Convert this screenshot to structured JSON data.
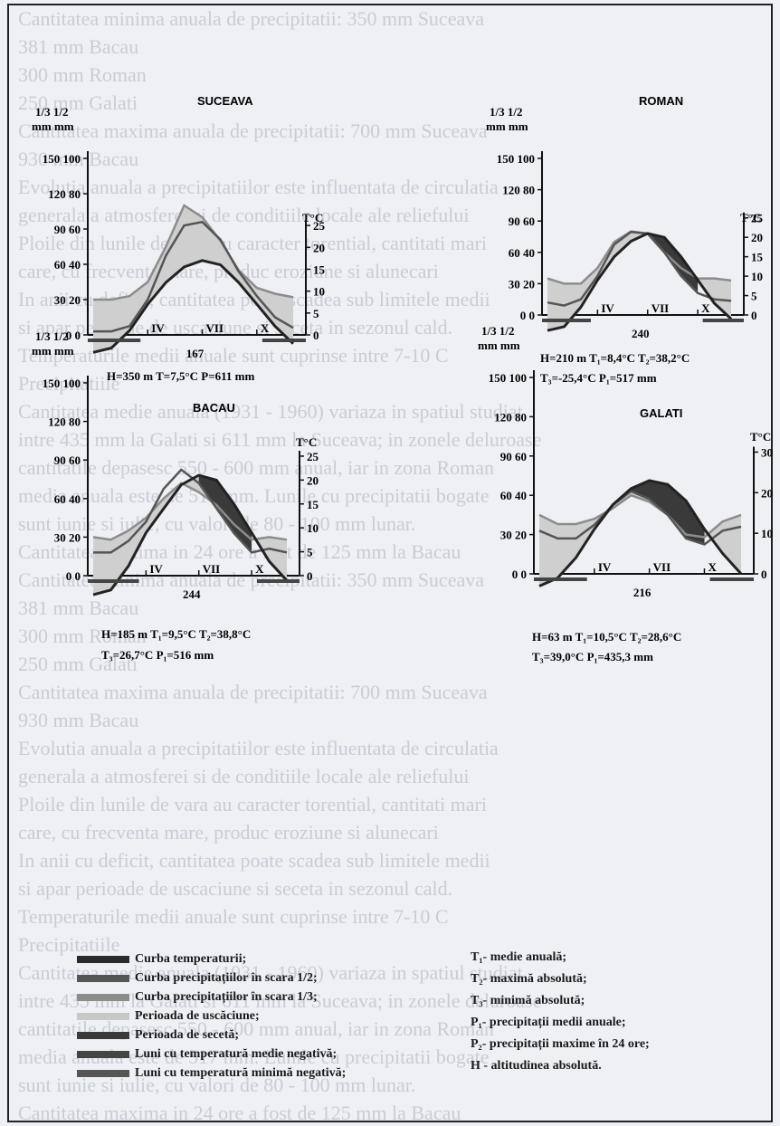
{
  "background_text": [
    "Cantitatea minima anuala de precipitatii:   350 mm Suceava",
    "              381 mm Bacau",
    "              300 mm Roman",
    "              250 mm Galati",
    "Cantitatea maxima anuala de precipitatii:   700 mm Suceava",
    "              930 mm Bacau",
    "Evolutia anuala a precipitatiilor este influentata de circulatia",
    "generala a atmosferei si de conditiile locale ale reliefului",
    "Ploile din lunile de vara au caracter torential, cantitati mari",
    "care, cu frecventa mare, produc eroziune si alunecari",
    "In anii cu deficit, cantitatea poate scadea sub limitele medii",
    "si apar perioade de uscaciune si seceta in sezonul cald.",
    "Temperaturile medii anuale sunt cuprinse intre 7-10 C",
    "Precipitatiile",
    "Cantitatea medie anuala (1931 - 1960) variaza in spatiul studiat",
    "intre 435 mm la Galati si 611 mm la Suceava; in zonele deluroase",
    "cantitatile depasesc 550 - 600 mm anual, iar in zona Roman",
    "media anuala este de 517 mm. Lunile cu precipitatii bogate",
    "sunt iunie si iulie, cu valori de 80 - 100 mm lunar.",
    "Cantitatea maxima in 24 ore a fost de 125 mm la Bacau"
  ],
  "stations": [
    {
      "name": "SUCEAVA",
      "info_line1": "H=350 m  T=7,5°C  P=611 mm",
      "info_line2": "",
      "dry_days": "167"
    },
    {
      "name": "ROMAN",
      "info_line1": "H=210 m  T₁=8,4°C  T₂=38,2°C",
      "info_line2": "T₃=-25,4°C      P₁=517 mm",
      "dry_days": "240"
    },
    {
      "name": "BACAU",
      "info_line1": "H=185 m  T₁=9,5°C  T₂=38,8°C",
      "info_line2": "T₃=26,7°C      P₁=516 mm",
      "dry_days": "244"
    },
    {
      "name": "GALATI",
      "info_line1": "H=63 m  T₁=10,5°C  T₂=28,6°C",
      "info_line2": "T₃=39,0°C      P₁=435,3 mm",
      "dry_days": "216"
    }
  ],
  "chart_data": [
    {
      "type": "line",
      "title": "SUCEAVA",
      "ylabel_13": "1/3",
      "ylabel_12": "1/2",
      "unit": "mm mm",
      "ylabel_right": "T°C",
      "left_ticks": [
        "0 0",
        "30 20",
        "60 40",
        "90 60",
        "120 80",
        "150 100"
      ],
      "right_ticks": [
        "0",
        "5",
        "10",
        "15",
        "20",
        "25"
      ],
      "month_marks": [
        "IV",
        "VII",
        "X"
      ],
      "x": [
        1,
        2,
        3,
        4,
        5,
        6,
        7,
        8,
        9,
        10,
        11,
        12
      ],
      "series": [
        {
          "name": "Curba precipitatiilor in scara 1/3",
          "values": [
            30,
            30,
            33,
            45,
            75,
            110,
            100,
            80,
            55,
            40,
            35,
            32
          ]
        },
        {
          "name": "Curba precipitatiilor in scara 1/2",
          "values": [
            2,
            2,
            5,
            20,
            45,
            62,
            64,
            54,
            36,
            22,
            10,
            4
          ]
        },
        {
          "name": "Curba temperaturii",
          "values": [
            -4,
            -3,
            1,
            7,
            12,
            15.5,
            17,
            16,
            12,
            7,
            2,
            -2
          ]
        }
      ]
    },
    {
      "type": "line",
      "title": "ROMAN",
      "ylabel_13": "1/3",
      "ylabel_12": "1/2",
      "unit": "mm mm",
      "ylabel_right": "T°C",
      "left_ticks": [
        "0 0",
        "30 20",
        "60 40",
        "90 60",
        "120 80",
        "150 100"
      ],
      "right_ticks": [
        "0",
        "5",
        "10",
        "15",
        "20",
        "25"
      ],
      "month_marks": [
        "IV",
        "VII",
        "X"
      ],
      "x": [
        1,
        2,
        3,
        4,
        5,
        6,
        7,
        8,
        9,
        10,
        11,
        12
      ],
      "series": [
        {
          "name": "Curba precipitatiilor in scara 1/3",
          "values": [
            35,
            30,
            30,
            45,
            70,
            80,
            78,
            60,
            45,
            35,
            35,
            33
          ]
        },
        {
          "name": "Curba precipitatiilor in scara 1/2",
          "values": [
            8,
            6,
            10,
            25,
            45,
            53,
            52,
            40,
            25,
            14,
            10,
            9
          ]
        },
        {
          "name": "Curba temperaturii",
          "values": [
            -4,
            -3,
            2,
            9,
            15,
            19,
            21,
            20,
            15,
            9,
            3,
            -1
          ]
        }
      ]
    },
    {
      "type": "line",
      "title": "BACAU",
      "ylabel_13": "1/3",
      "ylabel_12": "1/2",
      "unit": "mm mm",
      "ylabel_right": "T°C",
      "left_ticks": [
        "0 0",
        "30 20",
        "60 40",
        "90 60",
        "120 80",
        "150 100"
      ],
      "right_ticks": [
        "0",
        "5",
        "10",
        "15",
        "20",
        "25"
      ],
      "month_marks": [
        "IV",
        "VII",
        "X"
      ],
      "x": [
        1,
        2,
        3,
        4,
        5,
        6,
        7,
        8,
        9,
        10,
        11,
        12
      ],
      "series": [
        {
          "name": "Curba precipitatiilor in scara 1/3",
          "values": [
            30,
            28,
            35,
            45,
            60,
            72,
            65,
            55,
            40,
            28,
            30,
            28
          ]
        },
        {
          "name": "Curba precipitatiilor in scara 1/2",
          "values": [
            12,
            12,
            18,
            28,
            45,
            55,
            48,
            35,
            22,
            12,
            14,
            12
          ]
        },
        {
          "name": "Curba temperaturii",
          "values": [
            -4,
            -3,
            2,
            9,
            14,
            19,
            21,
            20,
            15,
            9,
            3,
            -1
          ]
        }
      ]
    },
    {
      "type": "line",
      "title": "GALATI",
      "ylabel_13": "1/3",
      "ylabel_12": "1/2",
      "unit": "mm mm",
      "ylabel_right": "T°C",
      "left_ticks": [
        "0 0",
        "30 20",
        "60 40",
        "90 60",
        "120 80",
        "150 100"
      ],
      "right_ticks": [
        "0",
        "10",
        "20",
        "30"
      ],
      "month_marks": [
        "IV",
        "VII",
        "X"
      ],
      "x": [
        1,
        2,
        3,
        4,
        5,
        6,
        7,
        8,
        9,
        10,
        11,
        12
      ],
      "series": [
        {
          "name": "Curba precipitatiilor in scara 1/3",
          "values": [
            45,
            38,
            38,
            42,
            50,
            60,
            55,
            45,
            30,
            28,
            40,
            45
          ]
        },
        {
          "name": "Curba precipitatiilor in scara 1/2",
          "values": [
            22,
            18,
            18,
            25,
            35,
            42,
            38,
            30,
            18,
            15,
            22,
            24
          ]
        },
        {
          "name": "Curba temperaturii",
          "values": [
            -3,
            -1,
            4,
            11,
            17,
            21,
            23,
            22,
            18,
            11,
            5,
            0
          ]
        }
      ]
    }
  ],
  "legend_left": [
    {
      "color": "#2a2a2a",
      "label": "Curba temperaturii;"
    },
    {
      "color": "#555555",
      "label": "Curba precipitațiilor în scara 1/2;"
    },
    {
      "color": "#8c8c8c",
      "label": "Curba precipitațiilor în scara 1/3;"
    },
    {
      "color": "#c8c8c8",
      "label": "Perioada de uscăciune;"
    },
    {
      "color": "#3a3a3a",
      "label": "Perioada de secetă;"
    },
    {
      "color": "#444444",
      "label": "Luni cu temperatură medie negativă;"
    },
    {
      "color": "#555555",
      "label": "Luni cu temperatură minimă negativă;"
    }
  ],
  "legend_right": [
    "T₁- medie anuală;",
    "T₂- maximă absolută;",
    "T₃- minimă absolută;",
    "P₁- precipitații medii anuale;",
    "P₂- precipitații maxime în 24 ore;",
    "H - altitudinea absolută."
  ]
}
